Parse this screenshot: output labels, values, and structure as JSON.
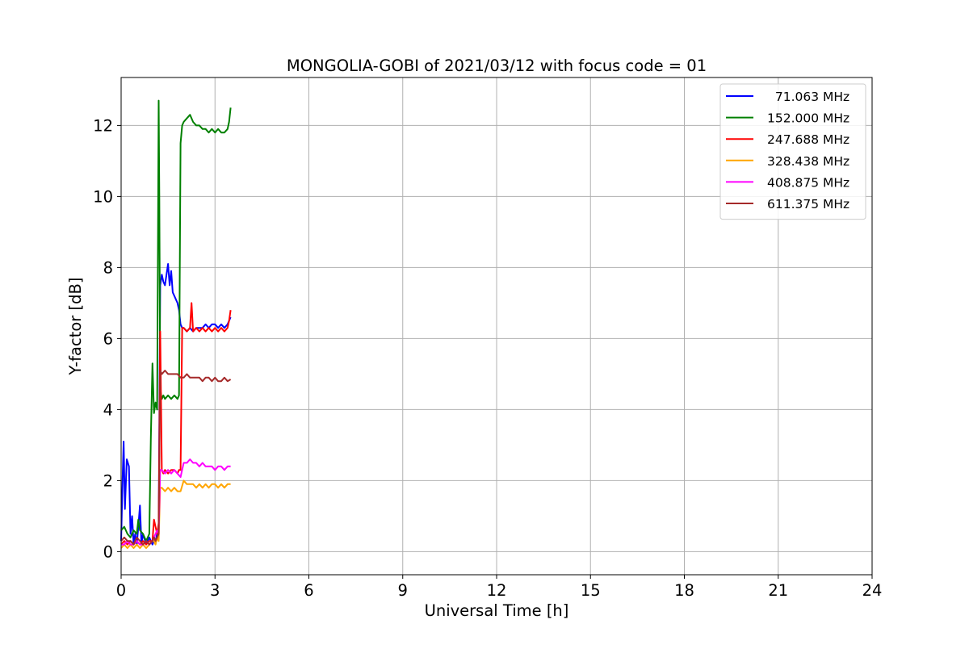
{
  "chart_data": {
    "type": "line",
    "title": "MONGOLIA-GOBI of 2021/03/12 with focus code = 01",
    "xlabel": "Universal Time [h]",
    "ylabel": "Y-factor [dB]",
    "xlim": [
      0,
      24
    ],
    "ylim": [
      -0.65,
      13.35
    ],
    "xticks": [
      0,
      3,
      6,
      9,
      12,
      15,
      18,
      21,
      24
    ],
    "xtick_labels": [
      "0",
      "3",
      "6",
      "9",
      "12",
      "15",
      "18",
      "21",
      "24"
    ],
    "yticks": [
      0,
      2,
      4,
      6,
      8,
      10,
      12
    ],
    "ytick_labels": [
      "0",
      "2",
      "4",
      "6",
      "8",
      "10",
      "12"
    ],
    "grid": true,
    "legend_position": "top-right",
    "series": [
      {
        "name": "  71.063 MHz",
        "color": "#0000ff",
        "x": [
          0.0,
          0.05,
          0.08,
          0.12,
          0.18,
          0.25,
          0.3,
          0.35,
          0.4,
          0.45,
          0.5,
          0.55,
          0.6,
          0.65,
          0.7,
          0.8,
          0.9,
          1.0,
          1.05,
          1.1,
          1.15,
          1.2,
          1.25,
          1.3,
          1.35,
          1.4,
          1.5,
          1.55,
          1.6,
          1.65,
          1.7,
          1.8,
          1.85,
          1.9,
          1.95,
          2.0,
          2.1,
          2.2,
          2.3,
          2.4,
          2.5,
          2.6,
          2.7,
          2.8,
          2.9,
          3.0,
          3.1,
          3.2,
          3.3,
          3.4,
          3.45,
          3.5
        ],
        "y": [
          0.3,
          2.1,
          3.1,
          1.2,
          2.6,
          2.4,
          0.5,
          1.0,
          0.2,
          0.5,
          0.2,
          0.7,
          1.3,
          0.2,
          0.5,
          0.2,
          0.4,
          0.2,
          0.3,
          0.3,
          0.5,
          0.7,
          7.5,
          7.8,
          7.6,
          7.5,
          8.1,
          7.5,
          7.9,
          7.3,
          7.2,
          7.0,
          6.8,
          6.4,
          6.3,
          6.3,
          6.2,
          6.3,
          6.2,
          6.3,
          6.3,
          6.3,
          6.4,
          6.3,
          6.4,
          6.4,
          6.3,
          6.4,
          6.3,
          6.4,
          6.5,
          6.6
        ]
      },
      {
        "name": "152.000 MHz",
        "color": "#008000",
        "x": [
          0.0,
          0.1,
          0.2,
          0.3,
          0.4,
          0.5,
          0.55,
          0.6,
          0.7,
          0.8,
          0.9,
          0.95,
          1.0,
          1.05,
          1.1,
          1.15,
          1.2,
          1.22,
          1.25,
          1.28,
          1.3,
          1.35,
          1.4,
          1.5,
          1.6,
          1.7,
          1.8,
          1.85,
          1.9,
          1.95,
          2.0,
          2.1,
          2.2,
          2.3,
          2.4,
          2.5,
          2.6,
          2.7,
          2.8,
          2.9,
          3.0,
          3.1,
          3.2,
          3.3,
          3.4,
          3.45,
          3.5
        ],
        "y": [
          0.6,
          0.7,
          0.5,
          0.4,
          0.6,
          0.5,
          0.9,
          0.6,
          0.5,
          0.3,
          0.5,
          3.2,
          5.3,
          3.9,
          4.2,
          4.0,
          12.7,
          10.0,
          4.6,
          4.4,
          4.3,
          4.4,
          4.3,
          4.4,
          4.3,
          4.4,
          4.3,
          4.4,
          11.5,
          12.0,
          12.1,
          12.2,
          12.3,
          12.1,
          12.0,
          12.0,
          11.9,
          11.9,
          11.8,
          11.9,
          11.8,
          11.9,
          11.8,
          11.8,
          11.9,
          12.1,
          12.5
        ]
      },
      {
        "name": "247.688 MHz",
        "color": "#ff0000",
        "x": [
          0.0,
          0.1,
          0.2,
          0.3,
          0.4,
          0.5,
          0.6,
          0.7,
          0.8,
          0.9,
          1.0,
          1.05,
          1.1,
          1.15,
          1.2,
          1.25,
          1.3,
          1.35,
          1.4,
          1.5,
          1.6,
          1.7,
          1.8,
          1.85,
          1.9,
          1.95,
          2.0,
          2.1,
          2.2,
          2.25,
          2.3,
          2.4,
          2.5,
          2.6,
          2.7,
          2.8,
          2.9,
          3.0,
          3.1,
          3.2,
          3.3,
          3.4,
          3.45,
          3.5
        ],
        "y": [
          0.2,
          0.3,
          0.2,
          0.3,
          0.2,
          0.3,
          0.2,
          0.3,
          0.2,
          0.3,
          0.3,
          0.9,
          0.7,
          0.5,
          0.8,
          6.2,
          2.3,
          2.2,
          2.3,
          2.2,
          2.3,
          2.3,
          2.2,
          2.3,
          2.3,
          6.3,
          6.3,
          6.2,
          6.3,
          7.0,
          6.2,
          6.3,
          6.2,
          6.3,
          6.2,
          6.3,
          6.2,
          6.3,
          6.2,
          6.3,
          6.2,
          6.3,
          6.5,
          6.8
        ]
      },
      {
        "name": "328.438 MHz",
        "color": "#ffa500",
        "x": [
          0.0,
          0.1,
          0.2,
          0.3,
          0.4,
          0.5,
          0.6,
          0.7,
          0.8,
          0.9,
          1.0,
          1.05,
          1.1,
          1.15,
          1.2,
          1.25,
          1.3,
          1.4,
          1.5,
          1.6,
          1.7,
          1.8,
          1.9,
          2.0,
          2.1,
          2.2,
          2.3,
          2.4,
          2.5,
          2.6,
          2.7,
          2.8,
          2.9,
          3.0,
          3.1,
          3.2,
          3.3,
          3.4,
          3.5
        ],
        "y": [
          0.1,
          0.2,
          0.1,
          0.2,
          0.1,
          0.2,
          0.1,
          0.2,
          0.1,
          0.2,
          0.3,
          0.3,
          0.2,
          0.4,
          0.3,
          1.8,
          1.8,
          1.7,
          1.8,
          1.7,
          1.8,
          1.7,
          1.7,
          2.0,
          1.9,
          1.9,
          1.9,
          1.8,
          1.9,
          1.8,
          1.9,
          1.8,
          1.9,
          1.9,
          1.8,
          1.9,
          1.8,
          1.9,
          1.9
        ]
      },
      {
        "name": "408.875 MHz",
        "color": "#ff00ff",
        "x": [
          0.0,
          0.1,
          0.2,
          0.3,
          0.4,
          0.5,
          0.6,
          0.7,
          0.8,
          0.9,
          1.0,
          1.05,
          1.1,
          1.15,
          1.2,
          1.25,
          1.3,
          1.4,
          1.5,
          1.6,
          1.7,
          1.8,
          1.9,
          2.0,
          2.1,
          2.2,
          2.3,
          2.4,
          2.5,
          2.6,
          2.7,
          2.8,
          2.9,
          3.0,
          3.1,
          3.2,
          3.3,
          3.4,
          3.5
        ],
        "y": [
          0.2,
          0.2,
          0.3,
          0.2,
          0.2,
          0.3,
          0.2,
          0.2,
          0.3,
          0.2,
          0.3,
          0.4,
          0.5,
          0.6,
          0.5,
          2.3,
          2.3,
          2.2,
          2.3,
          2.2,
          2.3,
          2.2,
          2.1,
          2.5,
          2.5,
          2.6,
          2.5,
          2.5,
          2.4,
          2.5,
          2.4,
          2.4,
          2.4,
          2.3,
          2.4,
          2.4,
          2.3,
          2.4,
          2.4
        ]
      },
      {
        "name": "611.375 MHz",
        "color": "#a52a2a",
        "x": [
          0.0,
          0.1,
          0.2,
          0.3,
          0.4,
          0.5,
          0.6,
          0.7,
          0.8,
          0.9,
          1.0,
          1.05,
          1.1,
          1.15,
          1.2,
          1.25,
          1.3,
          1.4,
          1.5,
          1.6,
          1.7,
          1.8,
          1.9,
          2.0,
          2.1,
          2.2,
          2.3,
          2.4,
          2.5,
          2.6,
          2.7,
          2.8,
          2.9,
          3.0,
          3.1,
          3.2,
          3.3,
          3.4,
          3.5
        ],
        "y": [
          0.3,
          0.4,
          0.3,
          0.3,
          0.2,
          0.4,
          0.3,
          0.2,
          0.3,
          0.2,
          0.3,
          0.4,
          0.3,
          0.4,
          0.5,
          5.1,
          5.0,
          5.1,
          5.0,
          5.0,
          5.0,
          5.0,
          4.9,
          4.9,
          5.0,
          4.9,
          4.9,
          4.9,
          4.9,
          4.8,
          4.9,
          4.9,
          4.8,
          4.9,
          4.8,
          4.8,
          4.9,
          4.8,
          4.85
        ]
      }
    ]
  }
}
